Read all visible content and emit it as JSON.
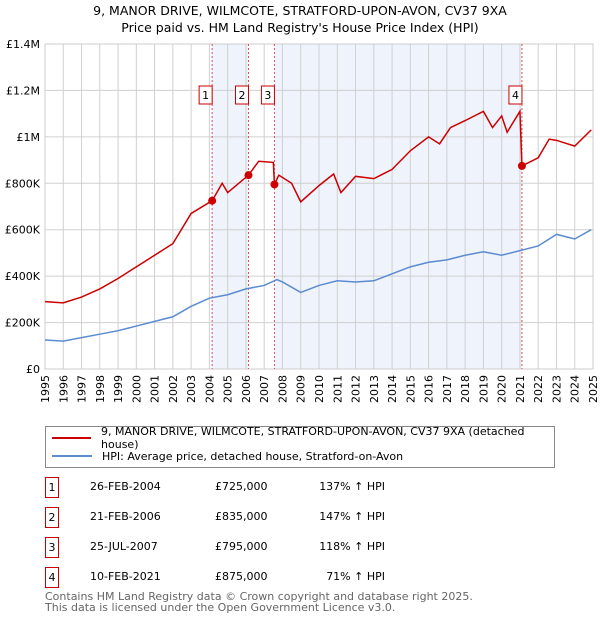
{
  "chart_data": {
    "type": "line",
    "title": "9, MANOR DRIVE, WILMCOTE, STRATFORD-UPON-AVON, CV37 9XA",
    "subtitle": "Price paid vs. HM Land Registry's House Price Index (HPI)",
    "xlim": [
      1995,
      2025
    ],
    "ylim": [
      0,
      1400000
    ],
    "x_ticks": [
      "1995",
      "1996",
      "1997",
      "1998",
      "1999",
      "2000",
      "2001",
      "2002",
      "2003",
      "2004",
      "2005",
      "2006",
      "2007",
      "2008",
      "2009",
      "2010",
      "2011",
      "2012",
      "2013",
      "2014",
      "2015",
      "2016",
      "2017",
      "2018",
      "2019",
      "2020",
      "2021",
      "2022",
      "2023",
      "2024",
      "2025"
    ],
    "y_ticks": [
      {
        "v": 0,
        "label": "£0"
      },
      {
        "v": 200000,
        "label": "£200K"
      },
      {
        "v": 400000,
        "label": "£400K"
      },
      {
        "v": 600000,
        "label": "£600K"
      },
      {
        "v": 800000,
        "label": "£800K"
      },
      {
        "v": 1000000,
        "label": "£1M"
      },
      {
        "v": 1200000,
        "label": "£1.2M"
      },
      {
        "v": 1400000,
        "label": "£1.4M"
      }
    ],
    "grid": true,
    "series": [
      {
        "name": "9, MANOR DRIVE, WILMCOTE, STRATFORD-UPON-AVON, CV37 9XA (detached house)",
        "color": "#cc0000",
        "x": [
          1995,
          1996,
          1997,
          1998,
          1999,
          2000,
          2001,
          2002,
          2003,
          2004.15,
          2004.7,
          2005,
          2006.14,
          2006.7,
          2007.5,
          2007.56,
          2007.8,
          2008.5,
          2009,
          2010,
          2010.8,
          2011.2,
          2012,
          2013,
          2014,
          2015,
          2016,
          2016.6,
          2017.2,
          2018,
          2019,
          2019.5,
          2020,
          2020.3,
          2021.0,
          2021.11,
          2022,
          2022.6,
          2023,
          2024,
          2024.9
        ],
        "y": [
          290000,
          285000,
          310000,
          345000,
          390000,
          440000,
          490000,
          540000,
          670000,
          725000,
          800000,
          760000,
          835000,
          895000,
          890000,
          795000,
          835000,
          800000,
          720000,
          790000,
          840000,
          760000,
          830000,
          820000,
          860000,
          940000,
          1000000,
          970000,
          1040000,
          1070000,
          1110000,
          1040000,
          1090000,
          1020000,
          1110000,
          875000,
          910000,
          990000,
          985000,
          960000,
          1030000
        ]
      },
      {
        "name": "HPI: Average price, detached house, Stratford-on-Avon",
        "color": "#5b8bd0",
        "x": [
          1995,
          1996,
          1997,
          1998,
          1999,
          2000,
          2001,
          2002,
          2003,
          2004,
          2005,
          2006,
          2007,
          2007.7,
          2008,
          2009,
          2010,
          2011,
          2012,
          2013,
          2014,
          2015,
          2016,
          2017,
          2018,
          2019,
          2020,
          2021,
          2022,
          2023,
          2024,
          2024.9
        ],
        "y": [
          125000,
          120000,
          135000,
          150000,
          165000,
          185000,
          205000,
          225000,
          270000,
          305000,
          320000,
          345000,
          360000,
          385000,
          375000,
          330000,
          360000,
          380000,
          375000,
          380000,
          410000,
          440000,
          460000,
          470000,
          490000,
          505000,
          490000,
          510000,
          530000,
          580000,
          560000,
          600000
        ]
      }
    ],
    "sales": [
      {
        "n": "1",
        "x": 2004.15,
        "y": 725000,
        "date": "26-FEB-2004",
        "price": "£725,000",
        "hpi": "137% ↑ HPI"
      },
      {
        "n": "2",
        "x": 2006.14,
        "y": 835000,
        "date": "21-FEB-2006",
        "price": "£835,000",
        "hpi": "147% ↑ HPI"
      },
      {
        "n": "3",
        "x": 2007.56,
        "y": 795000,
        "date": "25-JUL-2007",
        "price": "£795,000",
        "hpi": "118% ↑ HPI"
      },
      {
        "n": "4",
        "x": 2021.11,
        "y": 875000,
        "date": "10-FEB-2021",
        "price": "£875,000",
        "hpi": "71% ↑ HPI"
      }
    ],
    "legend_position": "bottom"
  },
  "footer": {
    "line1": "Contains HM Land Registry data © Crown copyright and database right 2025.",
    "line2": "This data is licensed under the Open Government Licence v3.0."
  }
}
